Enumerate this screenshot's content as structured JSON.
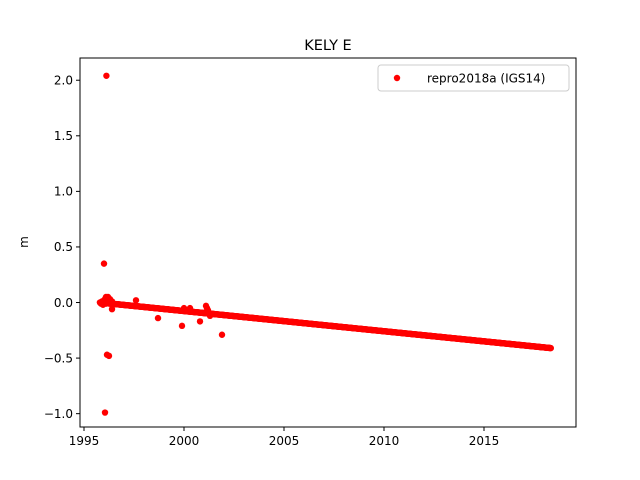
{
  "chart_data": {
    "type": "scatter",
    "title": "KELY E",
    "xlabel": "",
    "ylabel": "m",
    "xlim": [
      1994.8,
      2019.6
    ],
    "ylim": [
      -1.12,
      2.2
    ],
    "xticks": [
      1995,
      2000,
      2005,
      2010,
      2015
    ],
    "yticks": [
      -1.0,
      -0.5,
      0.0,
      0.5,
      1.0,
      1.5,
      2.0
    ],
    "xtick_labels": [
      "1995",
      "2000",
      "2005",
      "2010",
      "2015"
    ],
    "ytick_labels": [
      "−1.0",
      "−0.5",
      "0.0",
      "0.5",
      "1.0",
      "1.5",
      "2.0"
    ],
    "grid": false,
    "legend_position": "top-right",
    "series": [
      {
        "name": "repro2018a (IGS14)",
        "color": "#ff0000",
        "marker": "circle",
        "trend": {
          "x_start": 1995.8,
          "y_start": 0.0,
          "x_end": 2018.35,
          "y_end": -0.41,
          "step": 0.02
        },
        "points": [
          [
            1995.8,
            0.0
          ],
          [
            1995.85,
            -0.01
          ],
          [
            1995.9,
            0.01
          ],
          [
            1995.95,
            -0.02
          ],
          [
            1996.0,
            0.02
          ],
          [
            1996.05,
            0.03
          ],
          [
            1996.1,
            -0.01
          ],
          [
            1996.15,
            0.04
          ],
          [
            1996.2,
            0.05
          ],
          [
            1996.25,
            0.02
          ],
          [
            1996.3,
            0.03
          ],
          [
            1996.35,
            -0.01
          ],
          [
            1996.4,
            0.01
          ],
          [
            1996.1,
            0.05
          ],
          [
            1996.0,
            0.35
          ],
          [
            1996.12,
            2.04
          ],
          [
            1996.05,
            -0.99
          ],
          [
            1996.15,
            -0.47
          ],
          [
            1996.25,
            -0.48
          ],
          [
            1996.4,
            -0.06
          ],
          [
            1997.6,
            0.02
          ],
          [
            1998.7,
            -0.14
          ],
          [
            1999.2,
            -0.06
          ],
          [
            1999.9,
            -0.21
          ],
          [
            2000.0,
            -0.05
          ],
          [
            2000.3,
            -0.05
          ],
          [
            2000.8,
            -0.17
          ],
          [
            2001.1,
            -0.03
          ],
          [
            2001.15,
            -0.05
          ],
          [
            2001.2,
            -0.07
          ],
          [
            2001.3,
            -0.12
          ],
          [
            2001.9,
            -0.29
          ]
        ]
      }
    ]
  }
}
